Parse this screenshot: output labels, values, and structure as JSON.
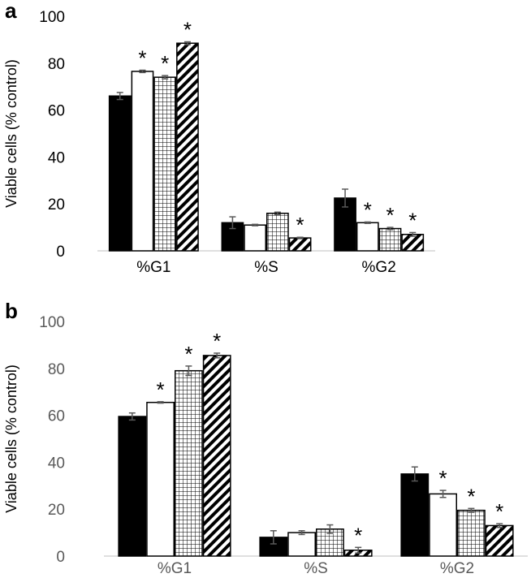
{
  "chart_data": [
    {
      "panel": "a",
      "type": "bar",
      "ylabel": "Viable cells (% control)",
      "ylim": [
        0,
        100
      ],
      "yticks": [
        "0",
        "20",
        "40",
        "60",
        "80",
        "100"
      ],
      "categories": [
        "%G1",
        "%S",
        "%G2"
      ],
      "series": [
        {
          "fill": "solid-black",
          "values": [
            66,
            12,
            22.5
          ],
          "errors": [
            1.5,
            2.5,
            3.8
          ],
          "stars": [
            "",
            "",
            ""
          ]
        },
        {
          "fill": "white",
          "values": [
            76.5,
            11,
            12
          ],
          "errors": [
            0.5,
            0.3,
            0.3
          ],
          "stars": [
            "*",
            "",
            "*"
          ]
        },
        {
          "fill": "grid",
          "values": [
            74,
            16,
            9.5
          ],
          "errors": [
            0.7,
            0.5,
            0.5
          ],
          "stars": [
            "*",
            "",
            "*"
          ]
        },
        {
          "fill": "diagonal",
          "values": [
            88.5,
            5.5,
            7
          ],
          "errors": [
            0.6,
            0.3,
            0.8
          ],
          "stars": [
            "*",
            "*",
            "*"
          ]
        }
      ]
    },
    {
      "panel": "b",
      "type": "bar",
      "ylabel": "Viable cells (% control)",
      "ylim": [
        0,
        100
      ],
      "yticks": [
        "0",
        "20",
        "40",
        "60",
        "80",
        "100"
      ],
      "categories": [
        "%G1",
        "%S",
        "%G2"
      ],
      "series": [
        {
          "fill": "solid-black",
          "values": [
            59.5,
            8,
            35
          ],
          "errors": [
            1.5,
            2.8,
            3
          ],
          "stars": [
            "",
            "",
            ""
          ]
        },
        {
          "fill": "white",
          "values": [
            65.5,
            10,
            26.5
          ],
          "errors": [
            0.3,
            0.8,
            1.5
          ],
          "stars": [
            "*",
            "",
            "*"
          ]
        },
        {
          "fill": "grid",
          "values": [
            79,
            11.5,
            19.5
          ],
          "errors": [
            2,
            1.8,
            0.8
          ],
          "stars": [
            "*",
            "",
            "*"
          ]
        },
        {
          "fill": "diagonal",
          "values": [
            85.5,
            2.5,
            13
          ],
          "errors": [
            1,
            1.2,
            0.8
          ],
          "stars": [
            "*",
            "*",
            "*"
          ]
        }
      ]
    }
  ]
}
